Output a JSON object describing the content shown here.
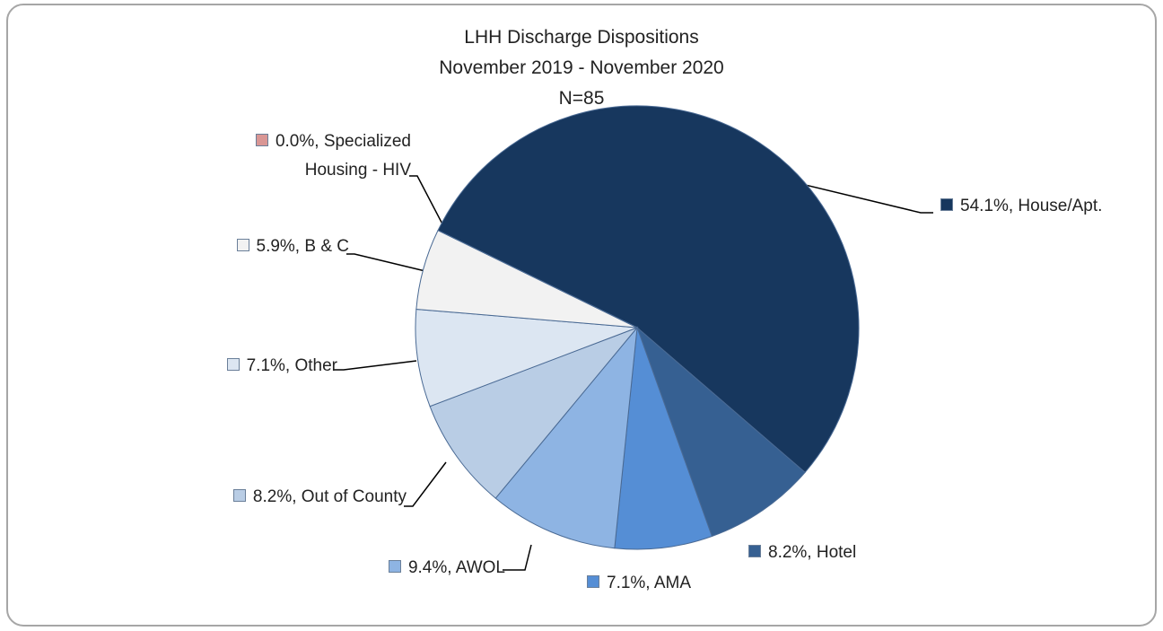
{
  "chart_data": {
    "type": "pie",
    "title": "LHH Discharge Dispositions",
    "subtitle": "November 2019 - November 2020",
    "annotations": [
      "N=85"
    ],
    "values": [
      54.1,
      8.2,
      7.1,
      9.4,
      8.2,
      7.1,
      5.9,
      0.0
    ],
    "value_labels": [
      "54.1%, House/Apt.",
      "8.2%, Hotel",
      "7.1%, AMA",
      "9.4%, AWOL",
      "8.2%, Out of County",
      "7.1%, Other",
      "5.9%, B & C",
      "0.0%, Specialized Housing - HIV"
    ],
    "colors": [
      "#17375e",
      "#366092",
      "#558ed5",
      "#8eb4e3",
      "#b9cde5",
      "#dce6f2",
      "#f2f2f2",
      "#d99694"
    ]
  }
}
